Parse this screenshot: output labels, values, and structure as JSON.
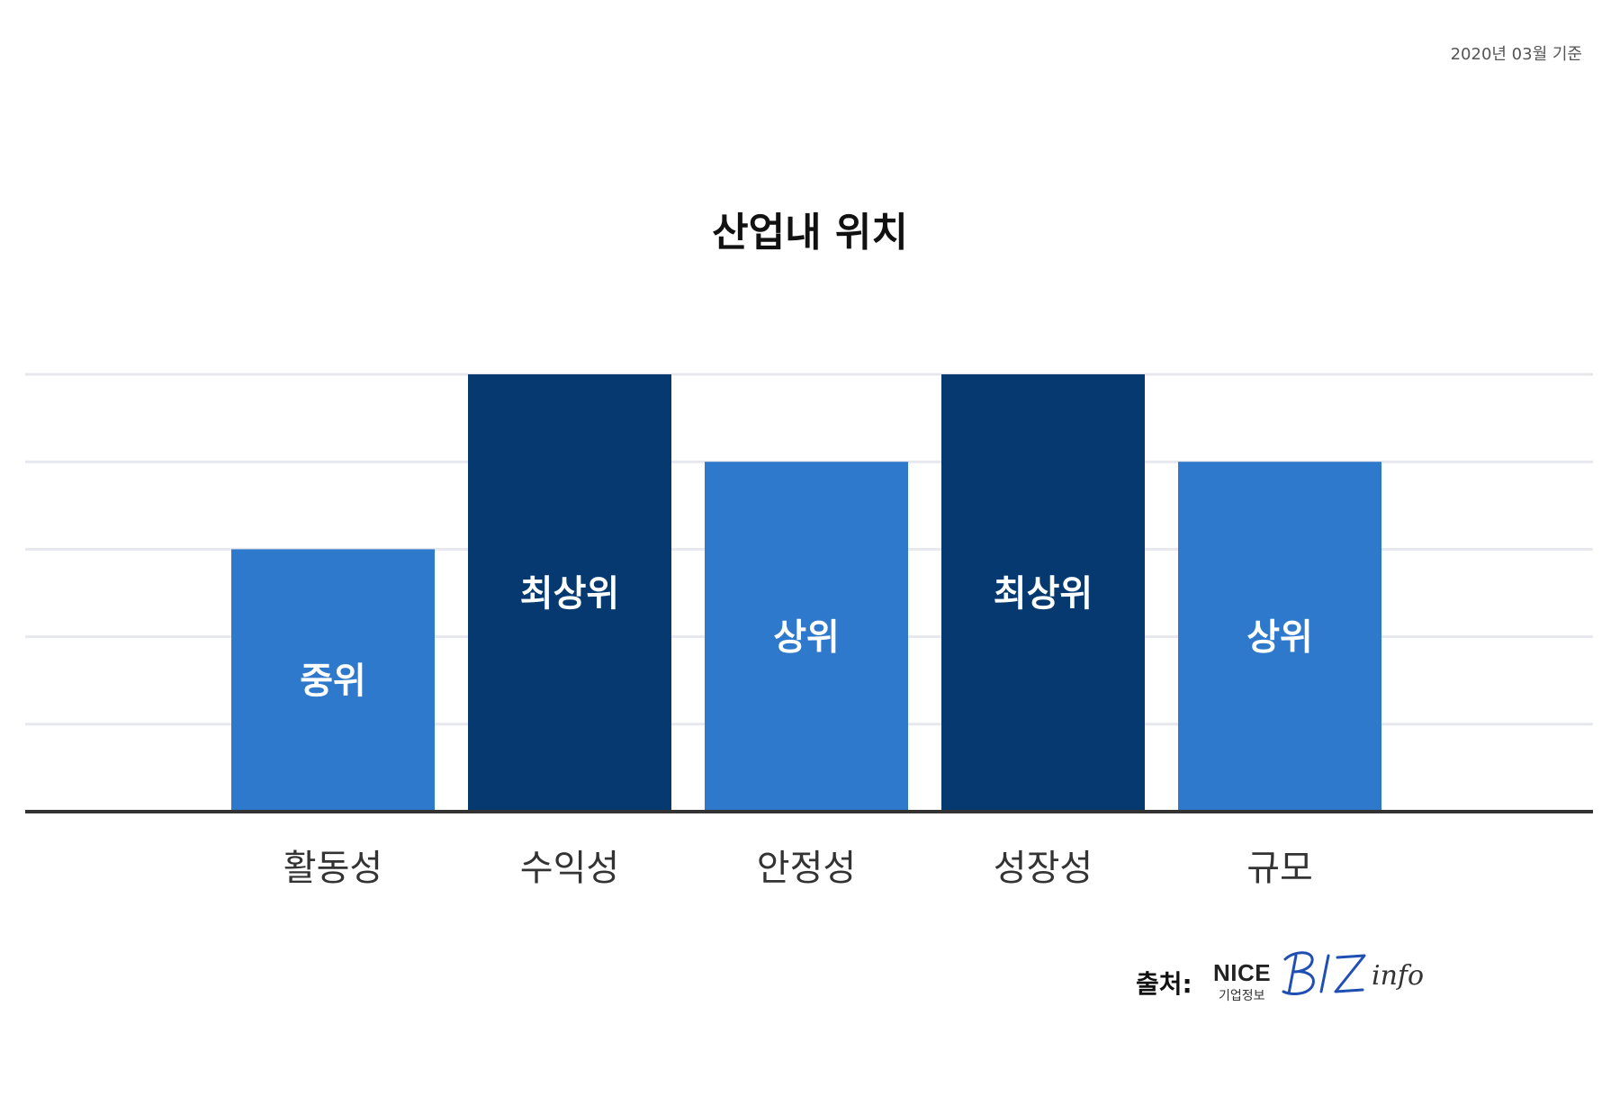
{
  "header": {
    "date_note": "2020년 03월 기준"
  },
  "chart_data": {
    "type": "bar",
    "title": "산업내 위치",
    "categories": [
      "활동성",
      "수익성",
      "안정성",
      "성장성",
      "규모"
    ],
    "level_order": [
      "중위",
      "상위",
      "최상위"
    ],
    "values": [
      3,
      5,
      4,
      5,
      4
    ],
    "value_labels": [
      "중위",
      "최상위",
      "상위",
      "최상위",
      "상위"
    ],
    "ylim": [
      0,
      5
    ],
    "grid": true,
    "legend": "none",
    "colors": {
      "중위": "#2e79cb",
      "상위": "#2e79cb",
      "최상위": "#053970",
      "grid": "#e6e8ee",
      "baseline": "#333333",
      "label_text": "#ffffff",
      "category_text": "#333333"
    }
  },
  "source": {
    "label": "출처:",
    "brand": "NICE",
    "brand_sub": "기업정보",
    "logo_text": "BIZ info"
  }
}
